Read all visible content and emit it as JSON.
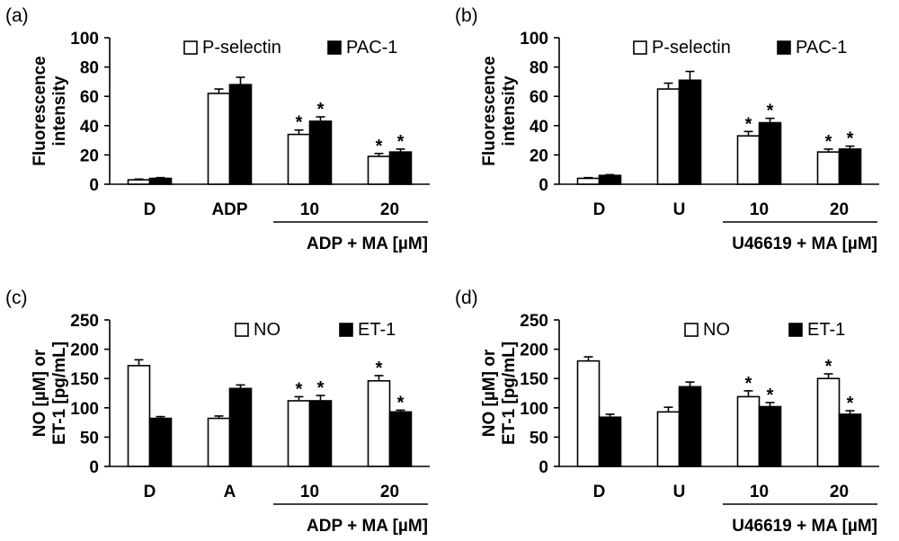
{
  "chart_data": [
    {
      "panel": "(a)",
      "type": "bar",
      "ylabel_lines": [
        "Fluorescence",
        "intensity"
      ],
      "ylim": [
        0,
        100
      ],
      "yticks": [
        0,
        20,
        40,
        60,
        80,
        100
      ],
      "categories": [
        "D",
        "ADP",
        "10",
        "20"
      ],
      "group_label": "ADP + MA [µM]",
      "grouped_categories": [
        "10",
        "20"
      ],
      "legend": {
        "position": "top-right",
        "style": "inline"
      },
      "series": [
        {
          "name": "P-selectin",
          "fill": "#ffffff",
          "values": [
            3,
            62,
            34,
            19
          ],
          "errors": [
            0.5,
            3,
            3,
            2
          ],
          "significant": [
            false,
            false,
            true,
            true
          ]
        },
        {
          "name": "PAC-1",
          "fill": "#000000",
          "values": [
            4,
            68,
            43,
            22
          ],
          "errors": [
            0.5,
            5,
            3,
            2
          ],
          "significant": [
            false,
            false,
            true,
            true
          ]
        }
      ]
    },
    {
      "panel": "(b)",
      "type": "bar",
      "ylabel_lines": [
        "Fluorescence",
        "intensity"
      ],
      "ylim": [
        0,
        100
      ],
      "yticks": [
        0,
        20,
        40,
        60,
        80,
        100
      ],
      "categories": [
        "D",
        "U",
        "10",
        "20"
      ],
      "group_label": "U46619 + MA [µM]",
      "grouped_categories": [
        "10",
        "20"
      ],
      "legend": {
        "position": "top-right",
        "style": "inline"
      },
      "series": [
        {
          "name": "P-selectin",
          "fill": "#ffffff",
          "values": [
            4,
            65,
            33,
            22
          ],
          "errors": [
            0.5,
            4,
            3,
            2
          ],
          "significant": [
            false,
            false,
            true,
            true
          ]
        },
        {
          "name": "PAC-1",
          "fill": "#000000",
          "values": [
            6,
            71,
            42,
            24
          ],
          "errors": [
            0.5,
            6,
            3,
            2
          ],
          "significant": [
            false,
            false,
            true,
            true
          ]
        }
      ]
    },
    {
      "panel": "(c)",
      "type": "bar",
      "ylabel_lines": [
        "NO [µM] or",
        "ET-1 [pg/mL]"
      ],
      "ylim": [
        0,
        250
      ],
      "yticks": [
        0,
        50,
        100,
        150,
        200,
        250
      ],
      "categories": [
        "D",
        "A",
        "10",
        "20"
      ],
      "group_label": "ADP + MA [µM]",
      "grouped_categories": [
        "10",
        "20"
      ],
      "legend": {
        "position": "top-right",
        "style": "spread"
      },
      "series": [
        {
          "name": "NO",
          "fill": "#ffffff",
          "values": [
            172,
            82,
            112,
            146
          ],
          "errors": [
            10,
            4,
            7,
            9
          ],
          "significant": [
            false,
            false,
            true,
            true
          ]
        },
        {
          "name": "ET-1",
          "fill": "#000000",
          "values": [
            82,
            133,
            112,
            93
          ],
          "errors": [
            3,
            6,
            9,
            3
          ],
          "significant": [
            false,
            false,
            true,
            true
          ]
        }
      ]
    },
    {
      "panel": "(d)",
      "type": "bar",
      "ylabel_lines": [
        "NO [µM] or",
        "ET-1 [pg/mL]"
      ],
      "ylim": [
        0,
        250
      ],
      "yticks": [
        0,
        50,
        100,
        150,
        200,
        250
      ],
      "categories": [
        "D",
        "U",
        "10",
        "20"
      ],
      "group_label": "U46619 + MA [µM]",
      "grouped_categories": [
        "10",
        "20"
      ],
      "legend": {
        "position": "top-right",
        "style": "spread"
      },
      "series": [
        {
          "name": "NO",
          "fill": "#ffffff",
          "values": [
            180,
            93,
            119,
            150
          ],
          "errors": [
            7,
            8,
            10,
            8
          ],
          "significant": [
            false,
            false,
            true,
            true
          ]
        },
        {
          "name": "ET-1",
          "fill": "#000000",
          "values": [
            84,
            136,
            102,
            89
          ],
          "errors": [
            5,
            8,
            7,
            6
          ],
          "significant": [
            false,
            false,
            true,
            true
          ]
        }
      ]
    }
  ]
}
